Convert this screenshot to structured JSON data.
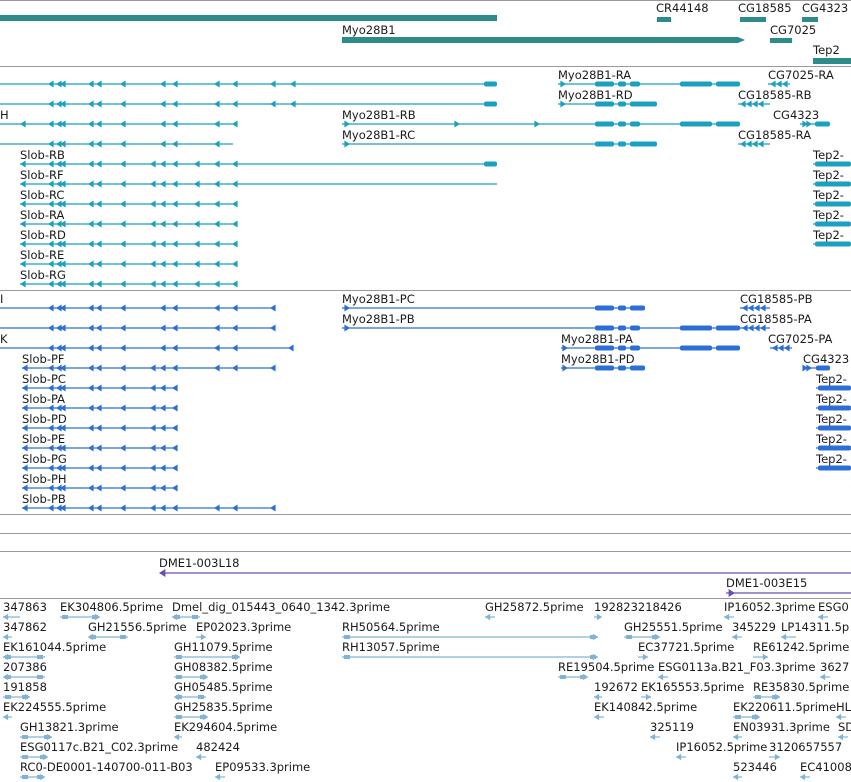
{
  "colors": {
    "gene": "#2e8b8b",
    "transcript_a": "#1aa0c0",
    "transcript_b": "#2b6fd6",
    "clone": "#6a4fb0",
    "est": "#7fb4d8",
    "divider": "#999999"
  },
  "tracks": {
    "genes": [
      {
        "label": "CR44148"
      },
      {
        "label": "CG18585"
      },
      {
        "label": "CG4323"
      },
      {
        "label": "Myo28B1"
      },
      {
        "label": "CG7025"
      },
      {
        "label": "Tep2"
      }
    ],
    "transcripts_a": [
      {
        "label": "Myo28B1-RA"
      },
      {
        "label": "CG7025-RA"
      },
      {
        "label": "Myo28B1-RD"
      },
      {
        "label": "CG18585-RB"
      },
      {
        "label": "H"
      },
      {
        "label": "Myo28B1-RB"
      },
      {
        "label": "CG4323"
      },
      {
        "label": "Myo28B1-RC"
      },
      {
        "label": "CG18585-RA"
      },
      {
        "label": "Slob-RB"
      },
      {
        "label": "Tep2-"
      },
      {
        "label": "Slob-RF"
      },
      {
        "label": "Tep2-"
      },
      {
        "label": "Slob-RC"
      },
      {
        "label": "Tep2-"
      },
      {
        "label": "Slob-RA"
      },
      {
        "label": "Tep2-"
      },
      {
        "label": "Slob-RD"
      },
      {
        "label": "Tep2-"
      },
      {
        "label": "Slob-RE"
      },
      {
        "label": "Slob-RG"
      }
    ],
    "transcripts_b": [
      {
        "label": "I"
      },
      {
        "label": "Myo28B1-PC"
      },
      {
        "label": "CG18585-PB"
      },
      {
        "label": "Myo28B1-PB"
      },
      {
        "label": "CG18585-PA"
      },
      {
        "label": "K"
      },
      {
        "label": "Myo28B1-PA"
      },
      {
        "label": "CG7025-PA"
      },
      {
        "label": "Slob-PF"
      },
      {
        "label": "Myo28B1-PD"
      },
      {
        "label": "CG4323"
      },
      {
        "label": "Slob-PC"
      },
      {
        "label": "Tep2-"
      },
      {
        "label": "Slob-PA"
      },
      {
        "label": "Tep2-"
      },
      {
        "label": "Slob-PD"
      },
      {
        "label": "Tep2-"
      },
      {
        "label": "Slob-PE"
      },
      {
        "label": "Tep2-"
      },
      {
        "label": "Slob-PG"
      },
      {
        "label": "Tep2-"
      },
      {
        "label": "Slob-PH"
      },
      {
        "label": "Slob-PB"
      }
    ],
    "clones": [
      {
        "label": "DME1-003L18"
      },
      {
        "label": "DME1-003E15"
      }
    ],
    "ests": [
      {
        "label": "347863"
      },
      {
        "label": "EK304806.5prime"
      },
      {
        "label": "Dmel_dig_015443_0640_1342.3prime"
      },
      {
        "label": "GH25872.5prime"
      },
      {
        "label": "192823218426"
      },
      {
        "label": "IP16052.3prime"
      },
      {
        "label": "ESG0"
      },
      {
        "label": "347862"
      },
      {
        "label": "GH21556.5prime"
      },
      {
        "label": "EP02023.3prime"
      },
      {
        "label": "RH50564.5prime"
      },
      {
        "label": "GH25551.5prime"
      },
      {
        "label": "345229"
      },
      {
        "label": "LP14311.5p"
      },
      {
        "label": "EK161044.5prime"
      },
      {
        "label": "GH11079.5prime"
      },
      {
        "label": "RH13057.5prime"
      },
      {
        "label": "EC37721.5prime"
      },
      {
        "label": "RE61242.5prime"
      },
      {
        "label": "207386"
      },
      {
        "label": "GH08382.5prime"
      },
      {
        "label": "RE19504.5prime"
      },
      {
        "label": "ESG0113a.B21_F03.3prime"
      },
      {
        "label": "3627"
      },
      {
        "label": "191858"
      },
      {
        "label": "GH05485.5prime"
      },
      {
        "label": "192672"
      },
      {
        "label": "EK165553.5prime"
      },
      {
        "label": "RE35830.5prime"
      },
      {
        "label": "EK224555.5prime"
      },
      {
        "label": "GH25835.5prime"
      },
      {
        "label": "EK140842.5prime"
      },
      {
        "label": "EK220611.5prime"
      },
      {
        "label": "HL"
      },
      {
        "label": "GH13821.3prime"
      },
      {
        "label": "EK294604.5prime"
      },
      {
        "label": "325119"
      },
      {
        "label": "EN03931.3prime"
      },
      {
        "label": "SD"
      },
      {
        "label": "ESG0117c.B21_C02.3prime"
      },
      {
        "label": "482424"
      },
      {
        "label": "IP16052.5prime"
      },
      {
        "label": "3120657557"
      },
      {
        "label": "RC0-DE0001-140700-011-B03"
      },
      {
        "label": "EP09533.3prime"
      },
      {
        "label": "523446"
      },
      {
        "label": "EC41008"
      }
    ]
  }
}
